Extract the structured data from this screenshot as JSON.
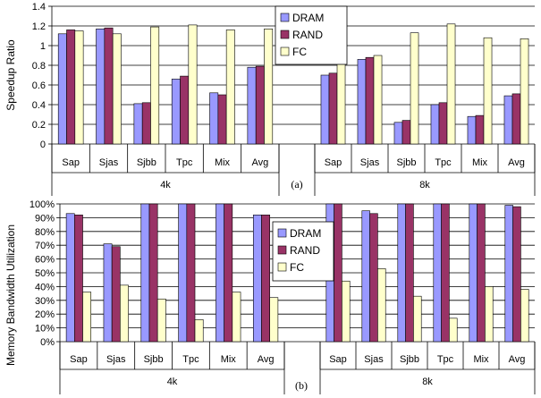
{
  "series_colors": {
    "DRAM": "#9999ff",
    "RAND": "#993366",
    "FC": "#ffffcc"
  },
  "chart_data": [
    {
      "type": "bar",
      "subtitle": "(a)",
      "ylabel": "Speedup Ratio",
      "ylim": [
        0,
        1.4
      ],
      "yticks": [
        "0",
        "0.2",
        "0.4",
        "0.6",
        "0.8",
        "1",
        "1.2",
        "1.4"
      ],
      "grid": true,
      "legend": {
        "position": "top-center",
        "entries": [
          "DRAM",
          "RAND",
          "FC"
        ]
      },
      "groups": [
        {
          "label": "4k",
          "categories": [
            "Sap",
            "Sjas",
            "Sjbb",
            "Tpc",
            "Mix",
            "Avg"
          ],
          "series": [
            {
              "name": "DRAM",
              "values": [
                1.12,
                1.17,
                0.41,
                0.66,
                0.52,
                0.78
              ]
            },
            {
              "name": "RAND",
              "values": [
                1.16,
                1.18,
                0.42,
                0.69,
                0.5,
                0.79
              ]
            },
            {
              "name": "FC",
              "values": [
                1.15,
                1.12,
                1.19,
                1.21,
                1.16,
                1.17
              ]
            }
          ]
        },
        {
          "label": "8k",
          "categories": [
            "Sap",
            "Sjas",
            "Sjbb",
            "Tpc",
            "Mix",
            "Avg"
          ],
          "series": [
            {
              "name": "DRAM",
              "values": [
                0.7,
                0.86,
                0.22,
                0.4,
                0.28,
                0.49
              ]
            },
            {
              "name": "RAND",
              "values": [
                0.72,
                0.88,
                0.24,
                0.42,
                0.29,
                0.51
              ]
            },
            {
              "name": "FC",
              "values": [
                1.02,
                0.9,
                1.13,
                1.22,
                1.08,
                1.07
              ]
            }
          ]
        }
      ]
    },
    {
      "type": "bar",
      "subtitle": "(b)",
      "ylabel": "Memory Bandwidth Utilization",
      "ylim": [
        0,
        100
      ],
      "yticks": [
        "0%",
        "10%",
        "20%",
        "30%",
        "40%",
        "50%",
        "60%",
        "70%",
        "80%",
        "90%",
        "100%"
      ],
      "grid": true,
      "legend": {
        "position": "center",
        "entries": [
          "DRAM",
          "RAND",
          "FC"
        ]
      },
      "groups": [
        {
          "label": "4k",
          "categories": [
            "Sap",
            "Sjas",
            "Sjbb",
            "Tpc",
            "Mix",
            "Avg"
          ],
          "series": [
            {
              "name": "DRAM",
              "values": [
                93,
                71,
                100,
                100,
                100,
                92
              ]
            },
            {
              "name": "RAND",
              "values": [
                92,
                69,
                100,
                100,
                100,
                92
              ]
            },
            {
              "name": "FC",
              "values": [
                36,
                41,
                31,
                16,
                36,
                32
              ]
            }
          ]
        },
        {
          "label": "8k",
          "categories": [
            "Sap",
            "Sjas",
            "Sjbb",
            "Tpc",
            "Mix",
            "Avg"
          ],
          "series": [
            {
              "name": "DRAM",
              "values": [
                100,
                95,
                100,
                100,
                100,
                99
              ]
            },
            {
              "name": "RAND",
              "values": [
                100,
                93,
                100,
                100,
                100,
                98
              ]
            },
            {
              "name": "FC",
              "values": [
                44,
                53,
                33,
                17,
                40,
                38
              ]
            }
          ]
        }
      ]
    }
  ]
}
